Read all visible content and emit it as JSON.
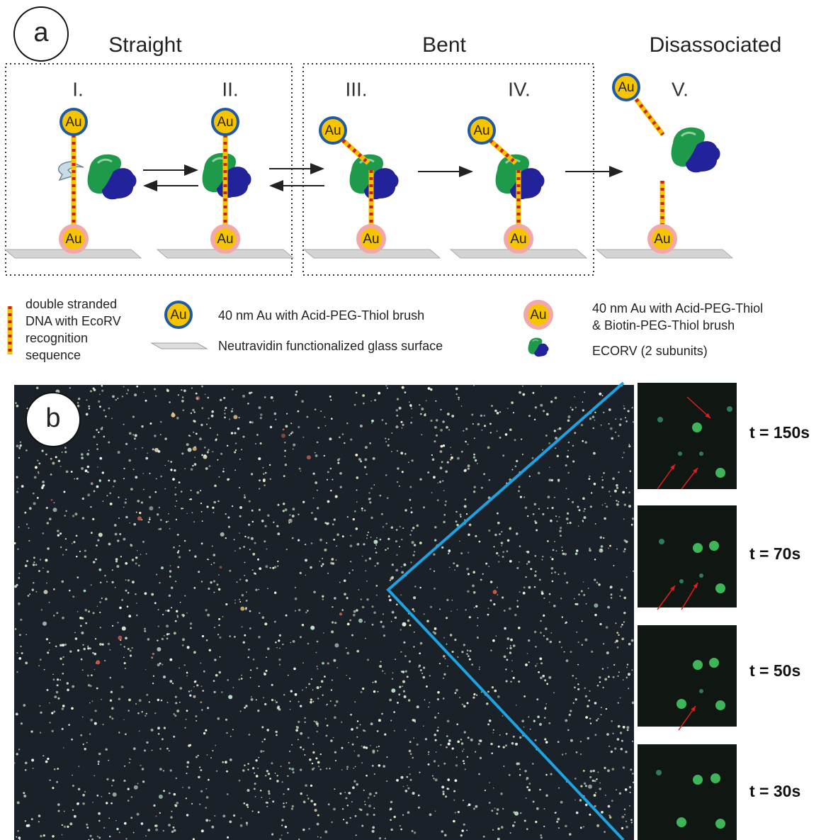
{
  "panel_a": {
    "label": "a",
    "stages": [
      "Straight",
      "Bent",
      "Disassociated"
    ],
    "states": [
      "I.",
      "II.",
      "III.",
      "IV.",
      "V."
    ],
    "particle_label": "Au"
  },
  "legend": {
    "dna": [
      "double stranded",
      "DNA with EcoRV",
      "recognition",
      "sequence"
    ],
    "au_acid": "40 nm Au with Acid-PEG-Thiol brush",
    "glass": "Neutravidin functionalized glass surface",
    "au_biotin": [
      "40 nm Au with Acid-PEG-Thiol",
      "& Biotin-PEG-Thiol brush"
    ],
    "enzyme": "ECORV (2 subunits)"
  },
  "panel_b": {
    "label": "b",
    "frames": [
      "t = 150s",
      "t = 70s",
      "t = 50s",
      "t = 30s"
    ]
  }
}
